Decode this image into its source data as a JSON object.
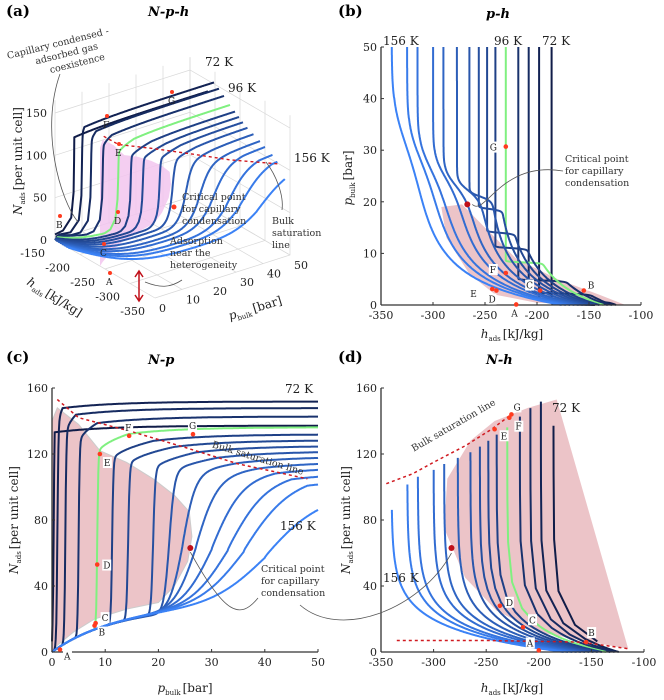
{
  "colors": {
    "low_T": "#101c48",
    "high_T": "#3b82f6",
    "highlight": "#80f080",
    "points": "#ff3b1f",
    "critical": "#c0101a",
    "saturation_line": "#d01a20",
    "coexistence_region": "#ecc4c8",
    "coexistence_region_3d": "#f2c6ee",
    "grid": "#d8d8d8"
  },
  "isotherms": {
    "labels": {
      "low": "72 K",
      "highlight": "96 K",
      "high": "156 K"
    },
    "temperatures_K": [
      72,
      78,
      84,
      90,
      96,
      102,
      108,
      114,
      120,
      126,
      132,
      138,
      144,
      150,
      156
    ],
    "highlighted": 96
  },
  "chart_data": [
    {
      "panel": "(a)",
      "title": "N-p-h",
      "type": "line3d",
      "xlabel": {
        "sym": "h",
        "sub": "ads",
        "unit": "[kJ/kg]"
      },
      "ylabel": {
        "sym": "p",
        "sub": "bulk",
        "unit": "[bar]"
      },
      "zlabel": {
        "sym": "N",
        "sub": "ads",
        "unit": "[per unit cell]"
      },
      "xticks": [
        "-150",
        "-200",
        "-250",
        "-300",
        "-350"
      ],
      "yticks": [
        "0",
        "10",
        "20",
        "30",
        "40",
        "50"
      ],
      "zticks": [
        "0",
        "50",
        "100",
        "150"
      ],
      "annotations": {
        "coexistence": [
          "Capillary condensed -",
          "adsorbed gas",
          "coexistence"
        ],
        "critical": [
          "Critical point",
          "for capillary",
          "condensation"
        ],
        "bulk": [
          "Bulk",
          "saturation",
          "line"
        ],
        "heterogeneity": [
          "Adsorption",
          "near the",
          "heterogeneity"
        ]
      },
      "point_labels": [
        "A",
        "B",
        "C",
        "D",
        "E",
        "F",
        "G"
      ]
    },
    {
      "panel": "(b)",
      "title": "p-h",
      "type": "line",
      "xlabel": {
        "sym": "h",
        "sub": "ads",
        "unit": "[kJ/kg]"
      },
      "ylabel": {
        "sym": "p",
        "sub": "bulk",
        "unit": "[bar]"
      },
      "xlim": [
        -350,
        -100
      ],
      "ylim": [
        0,
        50
      ],
      "xticks": [
        -350,
        -300,
        -250,
        -200,
        -150,
        -100
      ],
      "yticks": [
        0,
        10,
        20,
        30,
        40,
        50
      ],
      "points": {
        "A": [
          -220,
          0.1
        ],
        "B": [
          -155,
          2.8
        ],
        "C": [
          -197,
          2.8
        ],
        "D": [
          -239,
          2.8
        ],
        "E": [
          -243,
          3.1
        ],
        "F": [
          -230,
          6.2
        ],
        "G": [
          -230,
          30.7
        ]
      },
      "critical_point": [
        -267,
        19.5
      ],
      "coexistence_region": [
        [
          -292,
          19
        ],
        [
          -272,
          19.5
        ],
        [
          -250,
          15
        ],
        [
          -220,
          9
        ],
        [
          -180,
          5
        ],
        [
          -140,
          2
        ],
        [
          -115,
          0
        ],
        [
          -200,
          0.4
        ],
        [
          -240,
          2
        ],
        [
          -265,
          6
        ],
        [
          -287,
          13
        ]
      ],
      "annotations": {
        "critical": [
          "Critical point",
          "for capillary",
          "condensation"
        ]
      }
    },
    {
      "panel": "(c)",
      "title": "N-p",
      "type": "line",
      "xlabel": {
        "sym": "p",
        "sub": "bulk",
        "unit": "[bar]"
      },
      "ylabel": {
        "sym": "N",
        "sub": "ads",
        "unit": "[per unit cell]"
      },
      "xlim": [
        0,
        50
      ],
      "ylim": [
        0,
        160
      ],
      "xticks": [
        0,
        10,
        20,
        30,
        40,
        50
      ],
      "yticks": [
        0,
        40,
        80,
        120,
        160
      ],
      "points": {
        "A": [
          1.5,
          1.5
        ],
        "B": [
          8,
          16
        ],
        "C": [
          8.2,
          17.5
        ],
        "D": [
          8.5,
          53
        ],
        "E": [
          9,
          120
        ],
        "F": [
          14.5,
          131
        ],
        "G": [
          26.5,
          132
        ]
      },
      "critical_point": [
        26,
        63
      ],
      "bulk_saturation_line": [
        [
          1,
          153
        ],
        [
          5,
          142
        ],
        [
          14.5,
          134
        ],
        [
          25,
          124
        ],
        [
          35,
          114
        ],
        [
          48,
          105
        ]
      ],
      "coexistence_region": [
        [
          0,
          0
        ],
        [
          0,
          140
        ],
        [
          1,
          148
        ],
        [
          5,
          138
        ],
        [
          9,
          122
        ],
        [
          14,
          115
        ],
        [
          19,
          105
        ],
        [
          23,
          95
        ],
        [
          25.8,
          85
        ],
        [
          26.3,
          70
        ],
        [
          25.5,
          55
        ],
        [
          23,
          40
        ],
        [
          20,
          30
        ],
        [
          14,
          26
        ],
        [
          8,
          20
        ],
        [
          4,
          12
        ],
        [
          1,
          4
        ]
      ],
      "annotations": {
        "bulk": "Bulk saturation line",
        "critical": [
          "Critical point",
          "for capillary",
          "condensation"
        ]
      }
    },
    {
      "panel": "(d)",
      "title": "N-h",
      "type": "line",
      "xlabel": {
        "sym": "h",
        "sub": "ads",
        "unit": "[kJ/kg]"
      },
      "ylabel": {
        "sym": "N",
        "sub": "ads",
        "unit": "[per unit cell]"
      },
      "xlim": [
        -350,
        -100
      ],
      "ylim": [
        0,
        160
      ],
      "xticks": [
        -350,
        -300,
        -250,
        -200,
        -150,
        -100
      ],
      "yticks": [
        0,
        40,
        80,
        120,
        160
      ],
      "points": {
        "A": [
          -200,
          1
        ],
        "B": [
          -155,
          6
        ],
        "C": [
          -215,
          15
        ],
        "D": [
          -237,
          28
        ],
        "E": [
          -242,
          135
        ],
        "F": [
          -228,
          142
        ],
        "G": [
          -226,
          144
        ]
      },
      "critical_point": [
        -283,
        63
      ],
      "bulk_saturation_line": [
        [
          -345,
          102
        ],
        [
          -320,
          108
        ],
        [
          -300,
          115
        ],
        [
          -270,
          125
        ],
        [
          -245,
          135
        ],
        [
          -228,
          143
        ]
      ],
      "low_saturation_line": [
        [
          -335,
          7
        ],
        [
          -250,
          7
        ],
        [
          -160,
          6
        ],
        [
          -115,
          2
        ]
      ],
      "coexistence_region": [
        [
          -242,
          140
        ],
        [
          -210,
          148
        ],
        [
          -183,
          153
        ],
        [
          -115,
          2
        ],
        [
          -150,
          6
        ],
        [
          -200,
          12
        ],
        [
          -240,
          25
        ],
        [
          -270,
          45
        ],
        [
          -290,
          75
        ],
        [
          -287,
          105
        ],
        [
          -265,
          128
        ]
      ],
      "annotations": {
        "bulk": "Bulk saturation line"
      }
    }
  ]
}
